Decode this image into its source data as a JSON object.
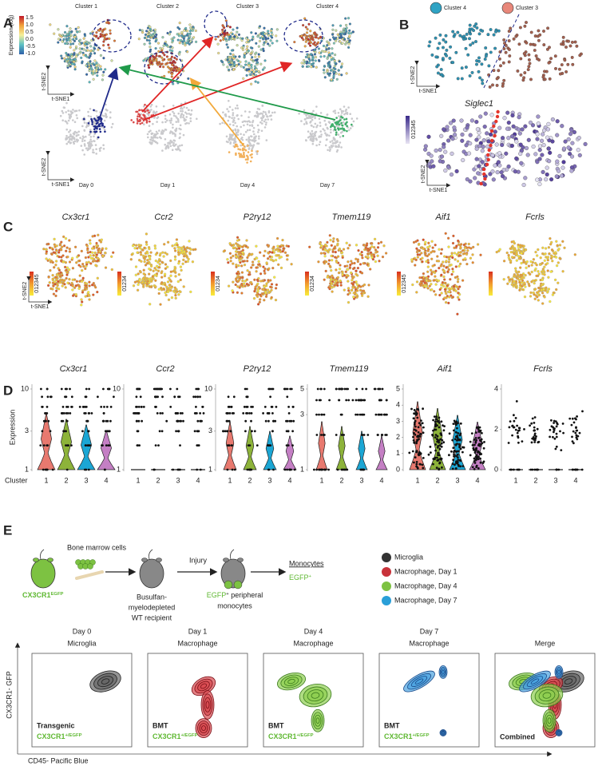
{
  "panel_a": {
    "letter": "A",
    "cluster_titles": [
      "Cluster 1",
      "Cluster 2",
      "Cluster 3",
      "Cluster 4"
    ],
    "colorbar_title": "Expression (log)",
    "colorbar_ticks": [
      "1.5",
      "1.0",
      "0.5",
      "0.0",
      "-0.5",
      "-1.0"
    ],
    "axis_y": "t-SNE2",
    "axis_x": "t-SNE1",
    "day_labels": [
      "Day 0",
      "Day 1",
      "Day 4",
      "Day 7"
    ]
  },
  "panel_b": {
    "letter": "B",
    "legend": [
      "Cluster 4",
      "Cluster 3"
    ],
    "axis_y": "t-SNE2",
    "axis_x": "t-SNE1",
    "gene": "Siglec1",
    "colorbar_ticks": "012345"
  },
  "panel_c": {
    "letter": "C",
    "genes": [
      "Cx3cr1",
      "Ccr2",
      "P2ry12",
      "Tmem119",
      "Aif1",
      "Fcrls"
    ],
    "colorbar_ticks": [
      "012345",
      "01234",
      "01234",
      "01234",
      "012345"
    ],
    "axis_y": "t-SNE2",
    "axis_x": "t-SNE1"
  },
  "panel_d": {
    "letter": "D",
    "genes": [
      "Cx3cr1",
      "Ccr2",
      "P2ry12",
      "Tmem119",
      "Aif1",
      "Fcrls"
    ],
    "y_label": "Expression",
    "x_label": "Cluster",
    "cluster_ticks": [
      "1",
      "2",
      "3",
      "4"
    ],
    "yticks": [
      [
        "10",
        "3",
        "1"
      ],
      [
        "10",
        "1"
      ],
      [
        "10",
        "3",
        "1"
      ],
      [
        "5",
        "3",
        "1"
      ],
      [
        "5",
        "4",
        "3",
        "2",
        "1",
        "0"
      ],
      [
        "4",
        "2",
        "0"
      ]
    ]
  },
  "panel_e": {
    "letter": "E",
    "donor": {
      "base": "CX3CR1",
      "sup": "EGFP"
    },
    "cells": "Bone marrow cells",
    "recipient": [
      "Busulfan-",
      "myelodepleted",
      "WT recipient"
    ],
    "injury": "Injury",
    "peripheral": {
      "base": "EGFP",
      "sup": "+",
      "rest": " peripheral",
      "line2": "monocytes"
    },
    "result": "Monocytes",
    "result_marker": {
      "base": "EGFP",
      "sup": "+"
    },
    "legend": [
      "Microglia",
      "Macrophage, Day 1",
      "Macrophage, Day 4",
      "Macrophage, Day 7"
    ],
    "plots": [
      {
        "title": [
          "Day 0",
          "Microglia"
        ],
        "label": "Transgenic",
        "genotype": {
          "base": "CX3CR1",
          "sup": "+/EGFP"
        }
      },
      {
        "title": [
          "Day 1",
          "Macrophage"
        ],
        "label": "BMT",
        "genotype": {
          "base": "CX3CR1",
          "sup": "+/EGFP"
        }
      },
      {
        "title": [
          "Day 4",
          "Macrophage"
        ],
        "label": "BMT",
        "genotype": {
          "base": "CX3CR1",
          "sup": "+/EGFP"
        }
      },
      {
        "title": [
          "Day 7",
          "Macrophage"
        ],
        "label": "BMT",
        "genotype": {
          "base": "CX3CR1",
          "sup": "+/EGFP"
        }
      },
      {
        "title": [
          "Merge"
        ],
        "label": "Combined"
      }
    ],
    "y_axis": "CX3CR1- GFP",
    "x_axis": "CD45- Pacific Blue"
  }
}
